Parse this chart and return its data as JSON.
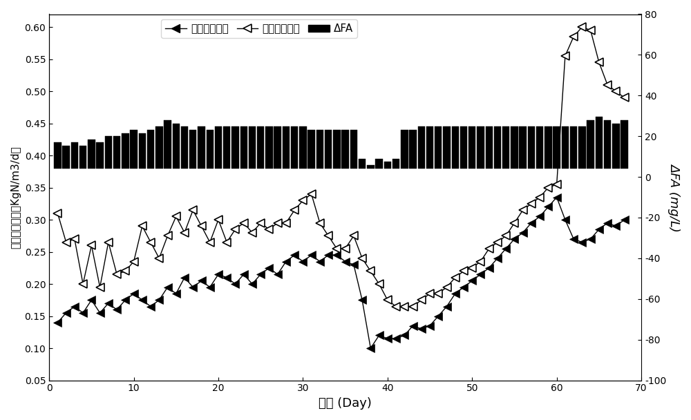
{
  "title": "",
  "xlabel": "日期 (Day)",
  "ylabel_left": "总氮容积负荷（KgN/m3/d）",
  "ylabel_right": "ΔFA (mg/L)",
  "xlim": [
    0,
    70
  ],
  "ylim_left": [
    0.05,
    0.62
  ],
  "ylim_right": [
    -100,
    80
  ],
  "yticks_left": [
    0.05,
    0.1,
    0.15,
    0.2,
    0.25,
    0.3,
    0.35,
    0.4,
    0.45,
    0.5,
    0.55,
    0.6
  ],
  "yticks_right": [
    -100,
    -80,
    -60,
    -40,
    -20,
    0,
    20,
    40,
    60,
    80
  ],
  "xticks": [
    0,
    10,
    20,
    30,
    40,
    50,
    60,
    70
  ],
  "legend_label1": "总氮容积负荷",
  "legend_label2": "氨氮容积负荷",
  "legend_label3": "ΔFA",
  "total_N_x": [
    1,
    2,
    3,
    4,
    5,
    6,
    7,
    8,
    9,
    10,
    11,
    12,
    13,
    14,
    15,
    16,
    17,
    18,
    19,
    20,
    21,
    22,
    23,
    24,
    25,
    26,
    27,
    28,
    29,
    30,
    31,
    32,
    33,
    34,
    35,
    36,
    37,
    38,
    39,
    40,
    41,
    42,
    43,
    44,
    45,
    46,
    47,
    48,
    49,
    50,
    51,
    52,
    53,
    54,
    55,
    56,
    57,
    58,
    59,
    60,
    61,
    62,
    63,
    64,
    65,
    66,
    67,
    68
  ],
  "total_N_y": [
    0.14,
    0.155,
    0.165,
    0.155,
    0.175,
    0.155,
    0.17,
    0.16,
    0.175,
    0.185,
    0.175,
    0.165,
    0.175,
    0.195,
    0.185,
    0.21,
    0.195,
    0.205,
    0.195,
    0.215,
    0.21,
    0.2,
    0.215,
    0.2,
    0.215,
    0.225,
    0.215,
    0.235,
    0.245,
    0.235,
    0.245,
    0.235,
    0.245,
    0.245,
    0.235,
    0.23,
    0.175,
    0.1,
    0.12,
    0.115,
    0.115,
    0.12,
    0.135,
    0.13,
    0.135,
    0.15,
    0.165,
    0.185,
    0.195,
    0.205,
    0.215,
    0.225,
    0.24,
    0.255,
    0.27,
    0.28,
    0.295,
    0.305,
    0.32,
    0.335,
    0.3,
    0.27,
    0.265,
    0.27,
    0.285,
    0.295,
    0.29,
    0.3
  ],
  "NH4_x": [
    1,
    2,
    3,
    4,
    5,
    6,
    7,
    8,
    9,
    10,
    11,
    12,
    13,
    14,
    15,
    16,
    17,
    18,
    19,
    20,
    21,
    22,
    23,
    24,
    25,
    26,
    27,
    28,
    29,
    30,
    31,
    32,
    33,
    34,
    35,
    36,
    37,
    38,
    39,
    40,
    41,
    42,
    43,
    44,
    45,
    46,
    47,
    48,
    49,
    50,
    51,
    52,
    53,
    54,
    55,
    56,
    57,
    58,
    59,
    60,
    61,
    62,
    63,
    64,
    65,
    66,
    67,
    68
  ],
  "NH4_y": [
    0.31,
    0.265,
    0.27,
    0.2,
    0.26,
    0.195,
    0.265,
    0.215,
    0.22,
    0.235,
    0.29,
    0.265,
    0.24,
    0.275,
    0.305,
    0.28,
    0.315,
    0.29,
    0.265,
    0.3,
    0.265,
    0.285,
    0.295,
    0.28,
    0.295,
    0.285,
    0.295,
    0.295,
    0.315,
    0.33,
    0.34,
    0.295,
    0.275,
    0.255,
    0.255,
    0.275,
    0.24,
    0.22,
    0.2,
    0.175,
    0.165,
    0.165,
    0.165,
    0.175,
    0.185,
    0.185,
    0.195,
    0.21,
    0.22,
    0.225,
    0.235,
    0.255,
    0.265,
    0.275,
    0.295,
    0.315,
    0.325,
    0.335,
    0.35,
    0.355,
    0.555,
    0.585,
    0.6,
    0.595,
    0.545,
    0.51,
    0.5,
    0.49
  ],
  "bar_x": [
    1,
    2,
    3,
    4,
    5,
    6,
    7,
    8,
    9,
    10,
    11,
    12,
    13,
    14,
    15,
    16,
    17,
    18,
    19,
    20,
    21,
    22,
    23,
    24,
    25,
    26,
    27,
    28,
    29,
    30,
    31,
    32,
    33,
    34,
    35,
    36,
    37,
    38,
    39,
    40,
    41,
    42,
    43,
    44,
    45,
    46,
    47,
    48,
    49,
    50,
    51,
    52,
    53,
    54,
    55,
    56,
    57,
    58,
    59,
    60,
    61,
    62,
    63,
    64,
    65,
    66,
    67,
    68
  ],
  "bar_y": [
    0.42,
    0.415,
    0.42,
    0.415,
    0.425,
    0.42,
    0.43,
    0.43,
    0.435,
    0.44,
    0.435,
    0.44,
    0.445,
    0.455,
    0.45,
    0.445,
    0.44,
    0.445,
    0.44,
    0.445,
    0.445,
    0.445,
    0.445,
    0.445,
    0.445,
    0.445,
    0.445,
    0.445,
    0.445,
    0.445,
    0.44,
    0.44,
    0.44,
    0.44,
    0.44,
    0.44,
    0.395,
    0.385,
    0.395,
    0.39,
    0.395,
    0.44,
    0.44,
    0.445,
    0.445,
    0.445,
    0.445,
    0.445,
    0.445,
    0.445,
    0.445,
    0.445,
    0.445,
    0.445,
    0.445,
    0.445,
    0.445,
    0.445,
    0.445,
    0.445,
    0.445,
    0.445,
    0.445,
    0.455,
    0.46,
    0.455,
    0.45,
    0.455
  ],
  "bar_baseline": 0.38
}
